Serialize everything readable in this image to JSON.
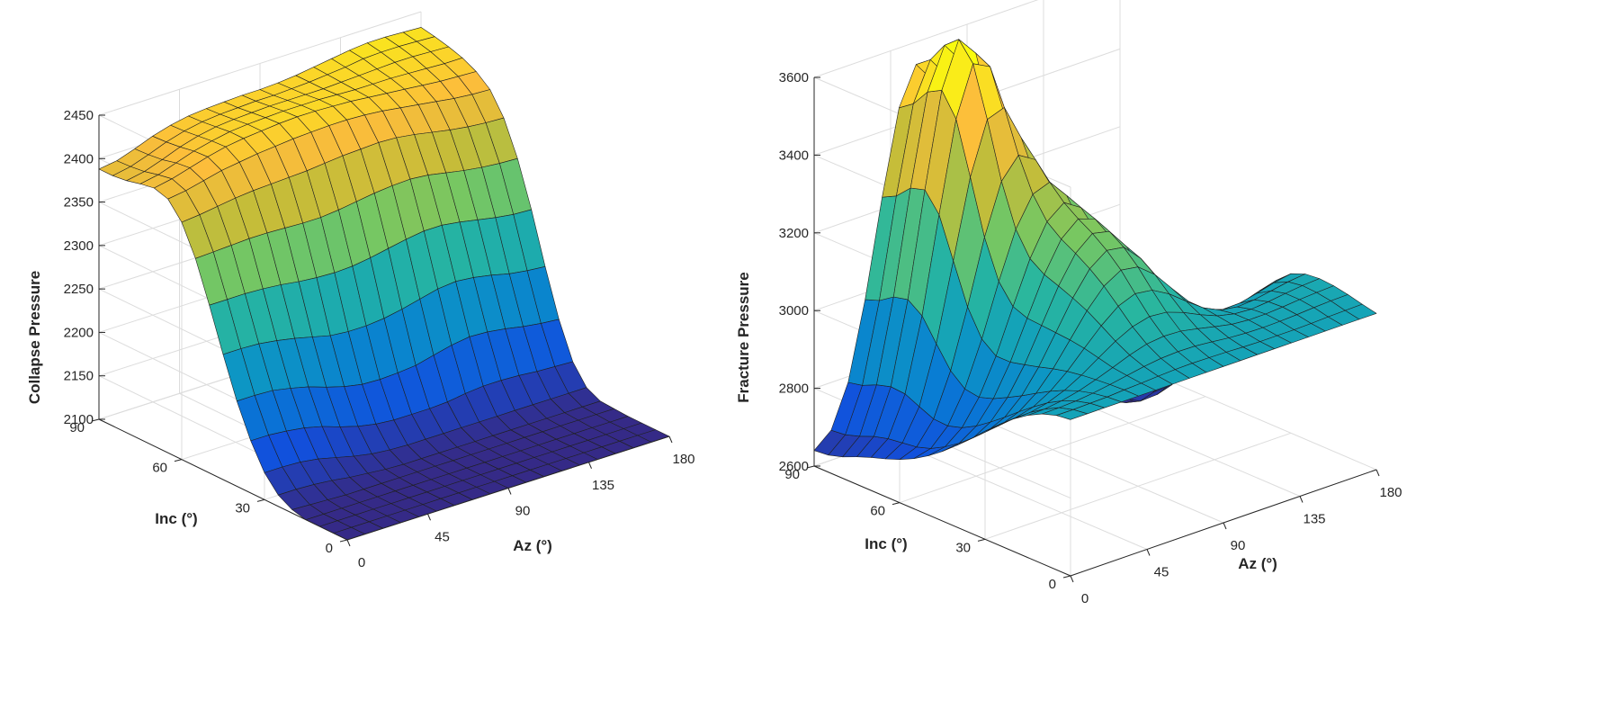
{
  "chart_data": [
    {
      "type": "surface",
      "zlabel": "Collapse Pressure",
      "xlabel": "Az (°)",
      "ylabel": "Inc (°)",
      "xlim": [
        0,
        180
      ],
      "ylim": [
        0,
        90
      ],
      "zlim": [
        2100,
        2450
      ],
      "x_ticks": [
        0,
        45,
        90,
        135,
        180
      ],
      "y_ticks": [
        0,
        30,
        60,
        90
      ],
      "z_ticks": [
        2100,
        2150,
        2200,
        2250,
        2300,
        2350,
        2400,
        2450
      ],
      "x": [
        0,
        10,
        20,
        30,
        40,
        50,
        60,
        70,
        80,
        90,
        100,
        110,
        120,
        130,
        140,
        150,
        160,
        170,
        180
      ],
      "y": [
        0,
        5,
        10,
        15,
        20,
        25,
        30,
        35,
        40,
        45,
        50,
        55,
        60,
        65,
        70,
        75,
        80,
        85,
        90
      ],
      "z": [
        [
          2100,
          2100,
          2100,
          2100,
          2100,
          2100,
          2100,
          2100,
          2100,
          2100,
          2100,
          2100,
          2100,
          2100,
          2100,
          2100,
          2100,
          2100,
          2100
        ],
        [
          2100,
          2100,
          2100,
          2100,
          2100,
          2100,
          2100,
          2100,
          2100,
          2100,
          2100,
          2100,
          2100,
          2100,
          2100,
          2100,
          2100,
          2100,
          2100
        ],
        [
          2100,
          2100,
          2100,
          2100,
          2100,
          2100,
          2100,
          2100,
          2100,
          2100,
          2100,
          2100,
          2100,
          2100,
          2100,
          2100,
          2100,
          2100,
          2100
        ],
        [
          2100,
          2100,
          2100,
          2100,
          2100,
          2100,
          2100,
          2100,
          2100,
          2100,
          2100,
          2100,
          2100,
          2100,
          2100,
          2100,
          2100,
          2100,
          2100
        ],
        [
          2104,
          2103,
          2102,
          2101,
          2101,
          2101,
          2101,
          2101,
          2101,
          2101,
          2101,
          2101,
          2101,
          2101,
          2101,
          2101,
          2101,
          2101,
          2101
        ],
        [
          2113,
          2113,
          2112,
          2110,
          2107,
          2105,
          2103,
          2102,
          2102,
          2102,
          2102,
          2102,
          2102,
          2102,
          2102,
          2102,
          2102,
          2102,
          2102
        ],
        [
          2131,
          2131,
          2130,
          2127,
          2122,
          2117,
          2113,
          2111,
          2110,
          2110,
          2110,
          2110,
          2110,
          2110,
          2110,
          2110,
          2110,
          2110,
          2110
        ],
        [
          2160,
          2160,
          2158,
          2155,
          2150,
          2143,
          2137,
          2133,
          2131,
          2131,
          2131,
          2132,
          2135,
          2137,
          2137,
          2136,
          2134,
          2133,
          2132
        ],
        [
          2198,
          2198,
          2197,
          2193,
          2188,
          2181,
          2175,
          2171,
          2170,
          2171,
          2173,
          2178,
          2183,
          2186,
          2185,
          2182,
          2178,
          2175,
          2173
        ],
        [
          2244,
          2244,
          2243,
          2240,
          2236,
          2231,
          2226,
          2224,
          2224,
          2226,
          2230,
          2235,
          2240,
          2242,
          2240,
          2236,
          2231,
          2228,
          2226
        ],
        [
          2293,
          2293,
          2293,
          2292,
          2290,
          2287,
          2285,
          2284,
          2285,
          2288,
          2292,
          2296,
          2299,
          2299,
          2296,
          2292,
          2288,
          2285,
          2284
        ],
        [
          2339,
          2340,
          2341,
          2342,
          2342,
          2341,
          2340,
          2340,
          2342,
          2345,
          2348,
          2350,
          2351,
          2349,
          2345,
          2341,
          2338,
          2336,
          2335
        ],
        [
          2373,
          2375,
          2378,
          2381,
          2383,
          2384,
          2385,
          2386,
          2388,
          2390,
          2391,
          2392,
          2391,
          2388,
          2384,
          2380,
          2377,
          2375,
          2374
        ],
        [
          2392,
          2395,
          2400,
          2405,
          2408,
          2411,
          2413,
          2415,
          2416,
          2417,
          2417,
          2416,
          2414,
          2411,
          2408,
          2405,
          2402,
          2400,
          2399
        ],
        [
          2397,
          2401,
          2407,
          2413,
          2418,
          2421,
          2423,
          2425,
          2426,
          2426,
          2425,
          2424,
          2422,
          2420,
          2418,
          2416,
          2414,
          2413,
          2412
        ],
        [
          2394,
          2398,
          2405,
          2412,
          2417,
          2421,
          2423,
          2424,
          2425,
          2425,
          2425,
          2424,
          2423,
          2423,
          2423,
          2422,
          2421,
          2420,
          2420
        ],
        [
          2390,
          2394,
          2401,
          2409,
          2415,
          2419,
          2421,
          2422,
          2423,
          2423,
          2423,
          2423,
          2424,
          2425,
          2426,
          2427,
          2427,
          2426,
          2425
        ],
        [
          2388,
          2392,
          2399,
          2407,
          2413,
          2417,
          2419,
          2420,
          2421,
          2421,
          2422,
          2423,
          2425,
          2427,
          2430,
          2431,
          2431,
          2430,
          2429
        ],
        [
          2388,
          2391,
          2398,
          2406,
          2412,
          2416,
          2418,
          2419,
          2420,
          2420,
          2421,
          2423,
          2426,
          2429,
          2432,
          2434,
          2434,
          2433,
          2432
        ]
      ]
    },
    {
      "type": "surface",
      "zlabel": "Fracture Pressure",
      "xlabel": "Az (°)",
      "ylabel": "Inc (°)",
      "xlim": [
        0,
        180
      ],
      "ylim": [
        0,
        90
      ],
      "zlim": [
        2600,
        3600
      ],
      "x_ticks": [
        0,
        45,
        90,
        135,
        180
      ],
      "y_ticks": [
        0,
        30,
        60,
        90
      ],
      "z_ticks": [
        2600,
        2800,
        3000,
        3200,
        3400,
        3600
      ],
      "x": [
        0,
        10,
        20,
        30,
        40,
        50,
        60,
        70,
        80,
        90,
        100,
        110,
        120,
        130,
        140,
        150,
        160,
        170,
        180
      ],
      "y": [
        0,
        5,
        10,
        15,
        20,
        25,
        30,
        35,
        40,
        45,
        50,
        55,
        60,
        65,
        70,
        75,
        80,
        85,
        90
      ],
      "z": [
        [
          3002,
          3002,
          3002,
          3002,
          3002,
          3002,
          3002,
          3002,
          3002,
          3002,
          3002,
          3002,
          3002,
          3002,
          3002,
          3002,
          3002,
          3002,
          3002
        ],
        [
          2997,
          2997,
          2998,
          2999,
          3002,
          3004,
          3007,
          3009,
          3010,
          3009,
          3008,
          3006,
          3005,
          3005,
          3005,
          3006,
          3008,
          3009,
          3010
        ],
        [
          2985,
          2986,
          2988,
          2993,
          3000,
          3008,
          3016,
          3022,
          3024,
          3023,
          3019,
          3014,
          3011,
          3010,
          3011,
          3013,
          3016,
          3018,
          3019
        ],
        [
          2966,
          2967,
          2973,
          2983,
          2997,
          3013,
          3030,
          3043,
          3048,
          3046,
          3037,
          3027,
          3018,
          3014,
          3014,
          3017,
          3021,
          3024,
          3026
        ],
        [
          2941,
          2943,
          2952,
          2969,
          2993,
          3022,
          3050,
          3072,
          3083,
          3079,
          3063,
          3042,
          3024,
          3014,
          3011,
          3015,
          3021,
          3026,
          3029
        ],
        [
          2911,
          2914,
          2926,
          2951,
          2987,
          3031,
          3074,
          3109,
          3126,
          3120,
          3095,
          3061,
          3029,
          3008,
          3001,
          3004,
          3012,
          3020,
          3025
        ],
        [
          2878,
          2881,
          2898,
          2930,
          2978,
          3037,
          3097,
          3145,
          3171,
          3164,
          3129,
          3078,
          3029,
          2994,
          2979,
          2980,
          2990,
          3002,
          3010
        ],
        [
          2843,
          2848,
          2868,
          2908,
          2967,
          3040,
          3114,
          3174,
          3206,
          3199,
          3155,
          3089,
          3022,
          2971,
          2945,
          2941,
          2952,
          2966,
          2978
        ],
        [
          2810,
          2815,
          2840,
          2888,
          2957,
          3043,
          3129,
          3198,
          3234,
          3224,
          3170,
          3090,
          3006,
          2938,
          2898,
          2888,
          2896,
          2915,
          2929
        ],
        [
          2779,
          2785,
          2814,
          2869,
          2948,
          3046,
          3143,
          3219,
          3256,
          3240,
          3174,
          3080,
          2982,
          2899,
          2847,
          2828,
          2833,
          2853,
          2870
        ],
        [
          2752,
          2760,
          2794,
          2857,
          2948,
          3060,
          3168,
          3248,
          3282,
          3254,
          3170,
          3060,
          2948,
          2855,
          2794,
          2769,
          2770,
          2790,
          2808
        ],
        [
          2729,
          2740,
          2783,
          2863,
          2976,
          3109,
          3228,
          3303,
          3319,
          3269,
          3163,
          3033,
          2906,
          2804,
          2739,
          2712,
          2712,
          2732,
          2750
        ],
        [
          2711,
          2728,
          2785,
          2894,
          3043,
          3207,
          3336,
          3388,
          3361,
          3274,
          3146,
          2999,
          2860,
          2750,
          2684,
          2658,
          2660,
          2680,
          2699
        ],
        [
          2697,
          2723,
          2801,
          2948,
          3146,
          3346,
          3479,
          3495,
          3401,
          3265,
          3120,
          2963,
          2815,
          2704,
          2641,
          2618,
          2620,
          2639,
          2657
        ],
        [
          2685,
          2718,
          2818,
          3004,
          3249,
          3480,
          3607,
          3584,
          3424,
          3243,
          3086,
          2931,
          2785,
          2677,
          2618,
          2598,
          2600,
          2616,
          2632
        ],
        [
          2671,
          2708,
          2821,
          3030,
          3297,
          3538,
          3654,
          3603,
          3413,
          3212,
          3053,
          2909,
          2776,
          2679,
          2626,
          2607,
          2607,
          2619,
          2631
        ],
        [
          2655,
          2693,
          2810,
          3021,
          3286,
          3518,
          3623,
          3567,
          3381,
          3182,
          3029,
          2902,
          2790,
          2710,
          2666,
          2649,
          2648,
          2655,
          2663
        ],
        [
          2644,
          2681,
          2793,
          2996,
          3250,
          3472,
          3570,
          3513,
          3342,
          3157,
          3016,
          2905,
          2815,
          2753,
          2720,
          2706,
          2703,
          2706,
          2709
        ],
        [
          2640,
          2677,
          2785,
          2983,
          3231,
          3446,
          3542,
          3486,
          3322,
          3145,
          3013,
          2911,
          2834,
          2784,
          2758,
          2748,
          2745,
          2745,
          2746
        ]
      ]
    }
  ]
}
